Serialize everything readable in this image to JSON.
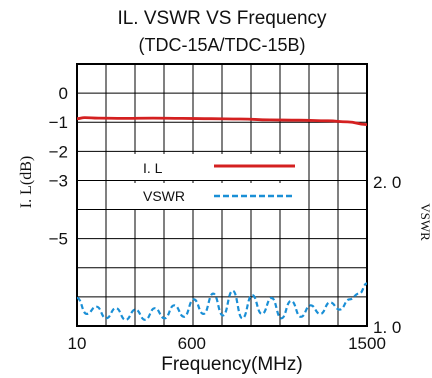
{
  "chart_data": {
    "type": "line",
    "title": "IL. VSWR VS Frequency",
    "subtitle": "(TDC-15A/TDC-15B)",
    "xlabel": "Frequency(MHz)",
    "ylabel": "I. L(dB)",
    "y2label": "VSWR",
    "xlim": [
      10,
      1500
    ],
    "ylim": [
      -8,
      1
    ],
    "y2lim": [
      1.0,
      2.0
    ],
    "x_ticks": [
      {
        "value": 10,
        "label": "10"
      },
      {
        "value": 600,
        "label": "600"
      },
      {
        "value": 1500,
        "label": "1500"
      }
    ],
    "y_ticks": [
      {
        "value": 0,
        "label": "0"
      },
      {
        "value": -1,
        "label": "−1"
      },
      {
        "value": -2,
        "label": "−2"
      },
      {
        "value": -3,
        "label": "−3"
      },
      {
        "value": -5,
        "label": "−5"
      }
    ],
    "y2_ticks": [
      {
        "value": 2.0,
        "label": "2. 0"
      },
      {
        "value": 1.0,
        "label": "1. 0"
      }
    ],
    "grid": true,
    "legend_position": "center-left",
    "series": [
      {
        "name": "I. L",
        "axis": "left",
        "color": "#d42020",
        "style": "solid",
        "x": [
          10,
          50,
          120,
          250,
          400,
          550,
          700,
          850,
          1000,
          1150,
          1300,
          1400,
          1500
        ],
        "y": [
          -0.88,
          -0.84,
          -0.86,
          -0.87,
          -0.86,
          -0.87,
          -0.88,
          -0.89,
          -0.92,
          -0.93,
          -0.95,
          -0.99,
          -1.08
        ]
      },
      {
        "name": "VSWR",
        "axis": "right",
        "color": "#1a8fd6",
        "style": "dashed",
        "x": [
          10,
          60,
          110,
          160,
          210,
          260,
          310,
          360,
          410,
          460,
          510,
          560,
          610,
          660,
          710,
          760,
          810,
          860,
          910,
          960,
          1010,
          1060,
          1110,
          1160,
          1210,
          1260,
          1310,
          1360,
          1410,
          1460,
          1500
        ],
        "y": [
          1.2,
          1.09,
          1.14,
          1.06,
          1.13,
          1.05,
          1.12,
          1.05,
          1.13,
          1.06,
          1.15,
          1.07,
          1.19,
          1.09,
          1.23,
          1.08,
          1.25,
          1.06,
          1.22,
          1.09,
          1.2,
          1.06,
          1.18,
          1.07,
          1.15,
          1.09,
          1.17,
          1.12,
          1.19,
          1.23,
          1.3
        ]
      }
    ]
  }
}
